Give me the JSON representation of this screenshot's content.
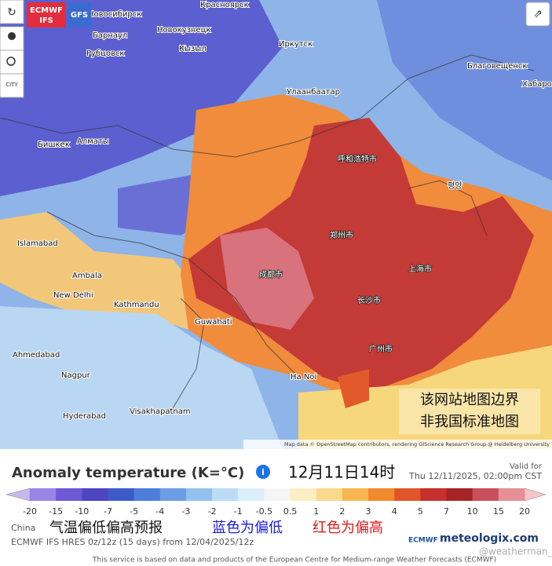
{
  "map": {
    "labels": [
      "Красноярск",
      "Новосибирск",
      "Барнаул",
      "Новокузнецк",
      "Рубцовск",
      "Кызыл",
      "Иркутск",
      "Улаанбаатар",
      "Бишкек",
      "Алматы",
      "Благовещенск",
      "Хабаровск",
      "Islamabad",
      "Ambala",
      "New Delhi",
      "Kathmandu",
      "Guwahati",
      "Ahmedabad",
      "Nagpur",
      "Hyderabad",
      "Visakhapatnam",
      "Ha Noi",
      "呼和浩特市",
      "郑州市",
      "成都市",
      "长沙市",
      "上海市",
      "广州市",
      "평양"
    ],
    "model_buttons": [
      "ECMWF",
      "IFS",
      "GFS"
    ],
    "city_button": "CITY",
    "note_lines": [
      "该网站地图边界",
      "非我国标准地图"
    ],
    "attribution": "Map data © OpenStreetMap contributors, rendering GIScience Research Group @ Heidelberg University"
  },
  "panel": {
    "title": "Anomaly temperature (K=°C)",
    "time_label": "12月11日14时",
    "valid_for": "Valid for",
    "valid_time": "Thu 12/11/2025, 02:00pm CST",
    "legend": {
      "ticks": [
        "-20",
        "-15",
        "-10",
        "-7",
        "-5",
        "-4",
        "-3",
        "-2",
        "-1",
        "-0.5",
        "0.5",
        "1",
        "2",
        "3",
        "4",
        "5",
        "7",
        "10",
        "15",
        "20"
      ],
      "colors": [
        "#c7b9ee",
        "#9a84e6",
        "#6f58d4",
        "#4d45c2",
        "#3c5bc9",
        "#4d7ed9",
        "#6c9ee6",
        "#93c1ef",
        "#bcdcf6",
        "#dcf0fb",
        "#f5f5f5",
        "#fbeec2",
        "#fbd98c",
        "#f7b650",
        "#f08a2e",
        "#e0562a",
        "#c7302c",
        "#a52424",
        "#c9505a",
        "#e58f96",
        "#f4c5c9"
      ]
    },
    "region": "China",
    "caption": [
      "气温偏低偏高预报",
      "蓝色为偏低",
      "红色为偏高"
    ],
    "model_info": "ECMWF IFS HRES 0z/12z (15 days) from 12/04/2025/12z",
    "ecmwf_logo": "ECMWF",
    "site": "meteologix.com",
    "watermark": "@weatherman_信欣",
    "footer": "This service is based on data and products of the European Centre for Medium-range Weather Forecasts (ECMWF)"
  }
}
